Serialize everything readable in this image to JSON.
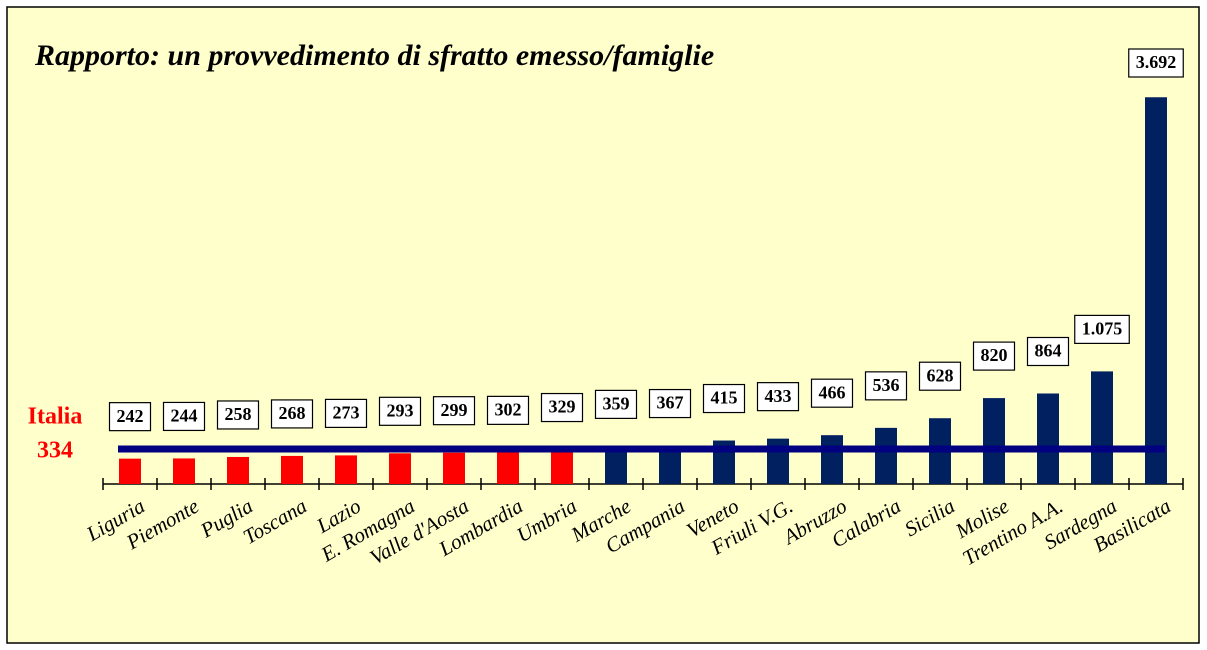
{
  "chart_data": {
    "type": "bar",
    "title": "Rapporto: un provvedimento di sfratto emesso/famiglie",
    "categories": [
      "Liguria",
      "Piemonte",
      "Puglia",
      "Toscana",
      "Lazio",
      "E. Romagna",
      "Valle d'Aosta",
      "Lombardia",
      "Umbria",
      "Marche",
      "Campania",
      "Veneto",
      "Friuli V.G.",
      "Abruzzo",
      "Calabria",
      "Sicilia",
      "Molise",
      "Trentino A.A.",
      "Sardegna",
      "Basilicata"
    ],
    "values": [
      242,
      244,
      258,
      268,
      273,
      293,
      299,
      302,
      329,
      359,
      367,
      415,
      433,
      466,
      536,
      628,
      820,
      864,
      1075,
      3692
    ],
    "value_labels": [
      "242",
      "244",
      "258",
      "268",
      "273",
      "293",
      "299",
      "302",
      "329",
      "359",
      "367",
      "415",
      "433",
      "466",
      "536",
      "628",
      "820",
      "864",
      "1.075",
      "3.692"
    ],
    "color_below": "#ff0000",
    "color_above": "#002060",
    "reference": {
      "label": "Italia",
      "value": 334,
      "color": "#000080",
      "label_color": "#ff0000"
    },
    "ylim": [
      0,
      4000
    ]
  }
}
